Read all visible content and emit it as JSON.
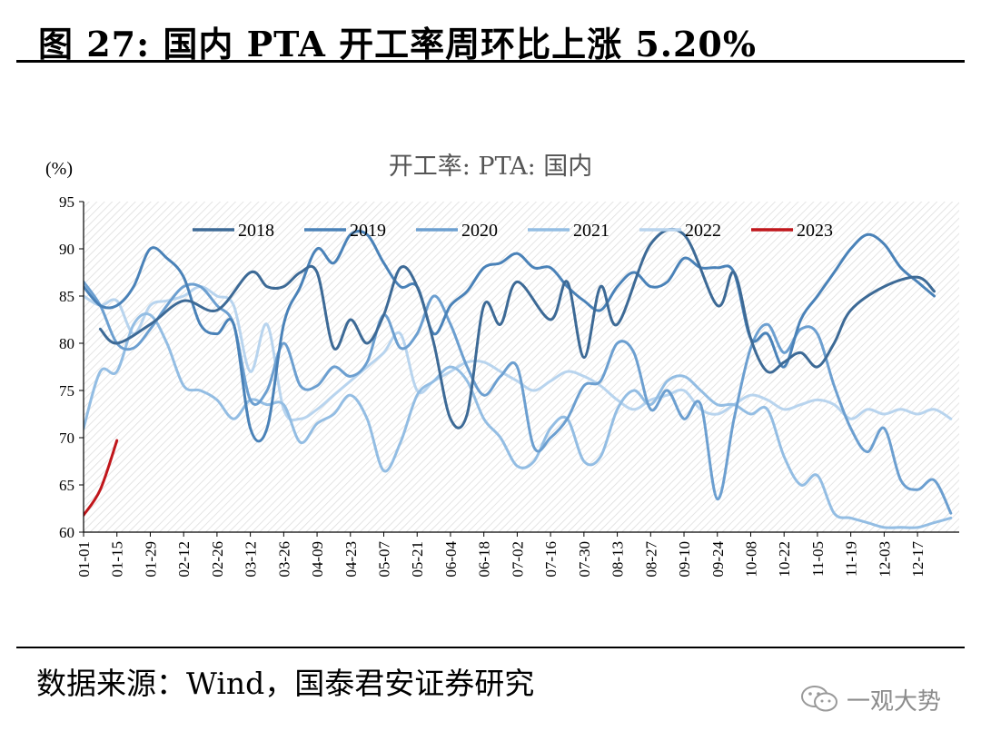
{
  "header": {
    "title": "图 27:  国内 PTA 开工率周环比上涨 5.20%"
  },
  "footer": {
    "source": "数据来源：Wind，国泰君安证券研究"
  },
  "watermark": {
    "text": "一观大势",
    "icon": "wechat-icon"
  },
  "chart_data": {
    "type": "line",
    "title": "开工率: PTA: 国内",
    "unit": "(%)",
    "ylim": [
      60,
      95
    ],
    "yticks": [
      60,
      65,
      70,
      75,
      80,
      85,
      90,
      95
    ],
    "xlim": [
      0,
      52.5
    ],
    "xtick_labels": [
      "01-01",
      "01-15",
      "01-29",
      "02-12",
      "02-26",
      "03-12",
      "03-26",
      "04-09",
      "04-23",
      "05-07",
      "05-21",
      "06-04",
      "06-18",
      "07-02",
      "07-16",
      "07-30",
      "08-13",
      "08-27",
      "09-10",
      "09-24",
      "10-08",
      "10-22",
      "11-05",
      "11-19",
      "12-03",
      "12-17"
    ],
    "grid": false,
    "background": "hatched",
    "legend": "top",
    "series": [
      {
        "name": "2018",
        "color": "#3d6a96",
        "x": [
          1,
          2,
          4,
          6,
          8,
          10,
          11,
          12,
          13,
          14,
          15,
          16,
          17,
          18,
          19,
          20,
          21,
          22,
          23,
          24,
          25,
          26,
          28,
          29,
          30,
          31,
          32,
          34,
          36,
          38,
          39,
          40,
          41,
          42,
          43,
          44,
          45,
          46,
          48,
          50,
          51
        ],
        "y": [
          81.5,
          80,
          82,
          84.5,
          83.5,
          87.5,
          86,
          86,
          87.5,
          87.5,
          79.5,
          82.5,
          80,
          83,
          88,
          86,
          80,
          72,
          72.5,
          84,
          82,
          86.5,
          82.5,
          86.5,
          78.5,
          86,
          82,
          90.5,
          91.5,
          84,
          87.5,
          80.5,
          77,
          78,
          79,
          77.5,
          80,
          83.5,
          86,
          87,
          85.5
        ]
      },
      {
        "name": "2019",
        "color": "#4a82b8",
        "x": [
          0,
          1,
          2,
          3,
          4,
          5,
          6,
          7,
          8,
          9,
          10,
          11,
          12,
          13,
          14,
          15,
          16,
          17,
          18,
          19,
          20,
          21,
          22,
          23,
          24,
          25,
          26,
          27,
          28,
          29,
          30,
          31,
          32,
          33,
          34,
          35,
          36,
          37,
          38,
          39,
          40,
          41,
          42,
          43,
          44,
          45,
          46,
          47,
          48,
          49,
          50,
          51
        ],
        "y": [
          86,
          84,
          84,
          86,
          90,
          89,
          87,
          82,
          81,
          82,
          71,
          71,
          82,
          86,
          90,
          88.5,
          91.5,
          91.5,
          88.5,
          86,
          86,
          81,
          84,
          85.5,
          88,
          88.5,
          89.5,
          88,
          88,
          86,
          84.5,
          83.5,
          86,
          87.5,
          86,
          86.5,
          89,
          88,
          88,
          87.5,
          80.5,
          81,
          77.5,
          82.5,
          85,
          87.5,
          90,
          91.5,
          90.5,
          88,
          86.5,
          85
        ]
      },
      {
        "name": "2020",
        "color": "#6c9fd0",
        "x": [
          0,
          1,
          2,
          3,
          4,
          5,
          6,
          7,
          8,
          9,
          10,
          11,
          12,
          13,
          14,
          15,
          16,
          17,
          18,
          19,
          20,
          21,
          22,
          23,
          24,
          25,
          26,
          27,
          28,
          29,
          30,
          31,
          32,
          33,
          34,
          35,
          36,
          37,
          38,
          39,
          40,
          41,
          42,
          43,
          44,
          45,
          46,
          47,
          48,
          49,
          50,
          51,
          52
        ],
        "y": [
          86.5,
          84,
          80,
          79.5,
          81.5,
          84,
          86,
          86,
          84,
          82,
          74,
          75,
          80,
          75.5,
          75.5,
          77.5,
          76.5,
          78,
          83,
          79.5,
          81,
          85,
          82,
          77.5,
          74.5,
          76.5,
          77.5,
          69,
          70,
          72,
          75.5,
          76,
          80,
          79,
          73,
          75,
          72,
          73.5,
          63.5,
          72,
          79.5,
          82,
          79,
          81.5,
          81,
          75.5,
          71,
          68.5,
          71,
          65.5,
          64.5,
          65.5,
          62
        ]
      },
      {
        "name": "2021",
        "color": "#93bde3",
        "x": [
          0,
          1,
          2,
          3,
          4,
          5,
          6,
          7,
          8,
          9,
          10,
          11,
          12,
          13,
          14,
          15,
          16,
          17,
          18,
          19,
          20,
          21,
          22,
          23,
          24,
          25,
          26,
          27,
          28,
          29,
          30,
          31,
          32,
          33,
          34,
          35,
          36,
          37,
          38,
          39,
          40,
          41,
          42,
          43,
          44,
          45,
          46,
          47,
          48,
          49,
          50,
          51,
          52
        ],
        "y": [
          71,
          77,
          77,
          82,
          83,
          80,
          75.5,
          75,
          74,
          72,
          74,
          73.5,
          73.5,
          69.5,
          71.5,
          72.5,
          74.5,
          72,
          66.5,
          69.5,
          74.5,
          76,
          77.5,
          76,
          72,
          70,
          67,
          67.5,
          71,
          72,
          67.5,
          68,
          73,
          75,
          73.5,
          76,
          76.5,
          75,
          73.5,
          73.5,
          72.5,
          73,
          68,
          65,
          66,
          62,
          61.5,
          61,
          60.5,
          60.5,
          60.5,
          61,
          61.5
        ]
      },
      {
        "name": "2022",
        "color": "#b8d4ee",
        "x": [
          0,
          1,
          2,
          3,
          4,
          5,
          6,
          7,
          8,
          9,
          10,
          11,
          12,
          13,
          14,
          15,
          16,
          17,
          18,
          19,
          20,
          21,
          22,
          23,
          24,
          25,
          26,
          27,
          28,
          29,
          30,
          31,
          32,
          33,
          34,
          35,
          36,
          37,
          38,
          39,
          40,
          41,
          42,
          43,
          44,
          45,
          46,
          47,
          48,
          49,
          50,
          51,
          52
        ],
        "y": [
          85,
          84,
          84.5,
          81,
          84,
          84.5,
          85,
          86,
          85,
          84,
          77,
          82,
          73,
          72,
          73,
          74.5,
          76,
          77.5,
          79,
          81,
          75,
          76,
          77,
          78,
          78,
          77,
          76,
          75,
          76,
          77,
          76.5,
          75.5,
          74,
          73,
          74,
          74.5,
          75,
          73,
          72.5,
          73.5,
          74.5,
          74,
          73,
          73.5,
          74,
          73.5,
          72,
          73,
          72.5,
          73,
          72.5,
          73,
          72
        ]
      },
      {
        "name": "2023",
        "color": "#c0161b",
        "x": [
          0,
          1,
          2
        ],
        "y": [
          61.8,
          64.5,
          69.7
        ]
      }
    ]
  }
}
